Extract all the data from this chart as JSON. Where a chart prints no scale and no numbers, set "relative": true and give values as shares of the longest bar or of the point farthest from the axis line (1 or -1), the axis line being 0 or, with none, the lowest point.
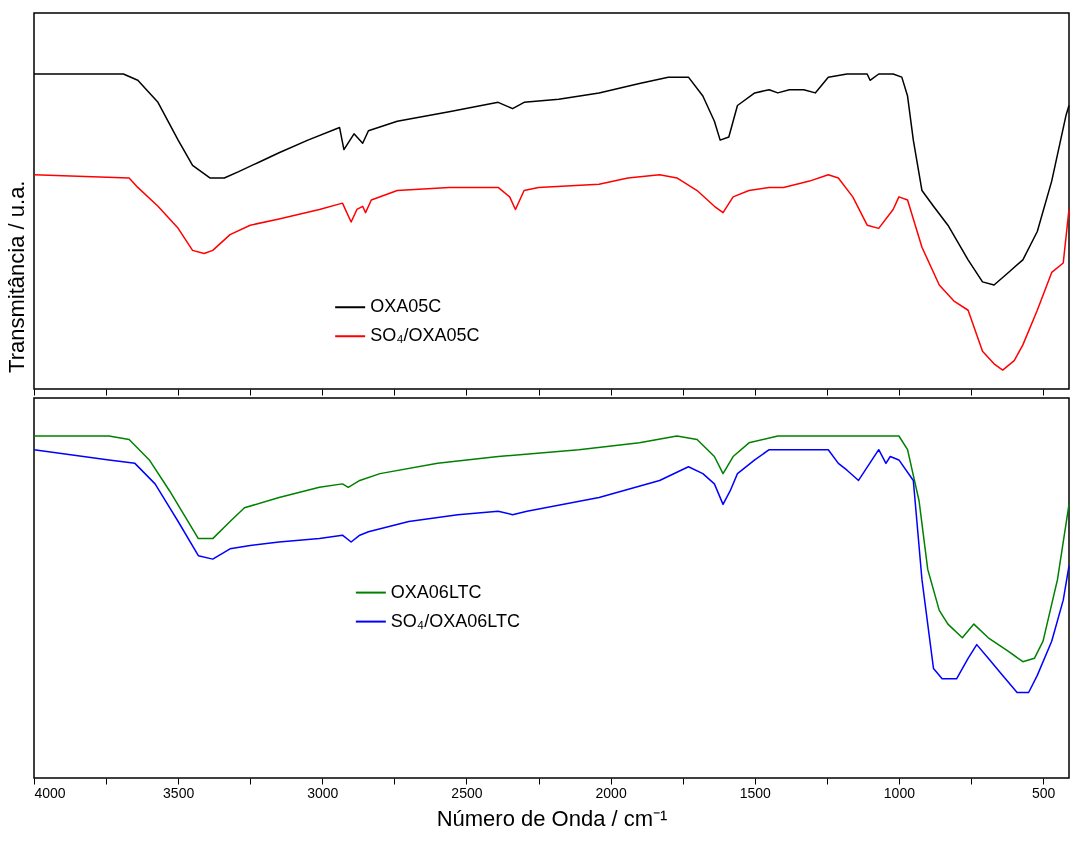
{
  "chart_data": [
    {
      "type": "line",
      "ylabel": "Transmitância / u.a.",
      "relative": true,
      "legend": "bottom",
      "tick_labels": false,
      "xlim": [
        4000,
        410
      ],
      "xticks": [
        4000,
        {
          "value": 3750,
          "label": null
        },
        3500,
        {
          "value": 3250,
          "label": null
        },
        3000,
        {
          "value": 2750,
          "label": null
        },
        2500,
        {
          "value": 2250,
          "label": null
        },
        2000,
        {
          "value": 1750,
          "label": null
        },
        1500,
        {
          "value": 1250,
          "label": null
        },
        1000,
        {
          "value": 750,
          "label": null
        },
        500
      ],
      "series": [
        {
          "name": "OXA05C",
          "color": "#000000",
          "x": [
            4000,
            3690,
            3640,
            3570,
            3500,
            3450,
            3390,
            3340,
            3290,
            3220,
            3150,
            3050,
            2940,
            2925,
            2890,
            2860,
            2840,
            2740,
            2560,
            2390,
            2340,
            2300,
            2180,
            2040,
            1900,
            1800,
            1730,
            1680,
            1640,
            1620,
            1590,
            1560,
            1500,
            1450,
            1420,
            1380,
            1330,
            1290,
            1245,
            1180,
            1110,
            1100,
            1070,
            1020,
            990,
            970,
            950,
            920,
            880,
            830,
            760,
            710,
            670,
            620,
            570,
            520,
            470,
            420,
            410
          ],
          "values": [
            1.0,
            1.0,
            0.98,
            0.91,
            0.79,
            0.71,
            0.67,
            0.67,
            0.69,
            0.72,
            0.75,
            0.79,
            0.83,
            0.76,
            0.81,
            0.78,
            0.82,
            0.85,
            0.88,
            0.91,
            0.89,
            0.91,
            0.92,
            0.94,
            0.97,
            0.99,
            0.99,
            0.93,
            0.85,
            0.79,
            0.8,
            0.9,
            0.94,
            0.95,
            0.94,
            0.95,
            0.95,
            0.94,
            0.99,
            1.0,
            1.0,
            0.98,
            1.0,
            1.0,
            0.99,
            0.93,
            0.79,
            0.63,
            0.58,
            0.52,
            0.41,
            0.34,
            0.33,
            0.37,
            0.41,
            0.5,
            0.66,
            0.87,
            0.9
          ]
        },
        {
          "name": "SO₄/OXA05C",
          "color": "#ff0000",
          "x": [
            4000,
            3670,
            3640,
            3570,
            3500,
            3450,
            3410,
            3380,
            3320,
            3250,
            3150,
            3010,
            2930,
            2900,
            2880,
            2860,
            2850,
            2830,
            2740,
            2560,
            2390,
            2350,
            2330,
            2300,
            2250,
            2040,
            1940,
            1830,
            1770,
            1700,
            1640,
            1610,
            1575,
            1520,
            1450,
            1400,
            1310,
            1245,
            1210,
            1160,
            1110,
            1070,
            1020,
            1000,
            970,
            920,
            860,
            810,
            760,
            710,
            670,
            640,
            600,
            570,
            520,
            470,
            430,
            410
          ],
          "values": [
            0.68,
            0.67,
            0.64,
            0.58,
            0.51,
            0.44,
            0.43,
            0.44,
            0.49,
            0.52,
            0.54,
            0.57,
            0.59,
            0.53,
            0.57,
            0.58,
            0.56,
            0.6,
            0.63,
            0.64,
            0.64,
            0.61,
            0.57,
            0.63,
            0.64,
            0.65,
            0.67,
            0.68,
            0.67,
            0.63,
            0.58,
            0.56,
            0.61,
            0.63,
            0.64,
            0.64,
            0.66,
            0.68,
            0.67,
            0.61,
            0.52,
            0.51,
            0.57,
            0.61,
            0.6,
            0.45,
            0.33,
            0.28,
            0.25,
            0.12,
            0.08,
            0.06,
            0.09,
            0.14,
            0.25,
            0.37,
            0.4,
            0.57
          ]
        }
      ]
    },
    {
      "type": "line",
      "xlabel": "Número de Onda / cm⁻¹",
      "relative": true,
      "legend": "left",
      "xlim": [
        4000,
        410
      ],
      "xticks": [
        4000,
        {
          "value": 3750,
          "label": null
        },
        3500,
        {
          "value": 3250,
          "label": null
        },
        3000,
        {
          "value": 2750,
          "label": null
        },
        2500,
        {
          "value": 2250,
          "label": null
        },
        2000,
        {
          "value": 1750,
          "label": null
        },
        1500,
        {
          "value": 1250,
          "label": null
        },
        1000,
        {
          "value": 750,
          "label": null
        },
        500
      ],
      "series": [
        {
          "name": "OXA06LTC",
          "color": "#008000",
          "x": [
            4000,
            3740,
            3670,
            3600,
            3530,
            3480,
            3430,
            3380,
            3320,
            3270,
            3150,
            3010,
            2930,
            2910,
            2870,
            2800,
            2600,
            2390,
            2110,
            1900,
            1770,
            1700,
            1640,
            1610,
            1575,
            1520,
            1420,
            1210,
            1000,
            970,
            930,
            900,
            860,
            830,
            780,
            740,
            690,
            620,
            570,
            530,
            500,
            450,
            410
          ],
          "values": [
            1.0,
            1.0,
            0.99,
            0.93,
            0.84,
            0.77,
            0.7,
            0.7,
            0.75,
            0.79,
            0.82,
            0.85,
            0.86,
            0.85,
            0.87,
            0.89,
            0.92,
            0.94,
            0.96,
            0.98,
            1.0,
            0.99,
            0.94,
            0.89,
            0.94,
            0.98,
            1.0,
            1.0,
            1.0,
            0.96,
            0.81,
            0.61,
            0.49,
            0.45,
            0.41,
            0.45,
            0.41,
            0.37,
            0.34,
            0.35,
            0.4,
            0.58,
            0.8
          ]
        },
        {
          "name": "SO₄/OXA06LTC",
          "color": "#0000ff",
          "x": [
            4000,
            3740,
            3650,
            3580,
            3500,
            3430,
            3380,
            3320,
            3250,
            3150,
            3010,
            2930,
            2900,
            2870,
            2840,
            2700,
            2530,
            2390,
            2340,
            2290,
            2040,
            1830,
            1730,
            1680,
            1640,
            1610,
            1585,
            1560,
            1500,
            1450,
            1310,
            1245,
            1210,
            1180,
            1140,
            1070,
            1045,
            1030,
            1000,
            950,
            920,
            880,
            850,
            800,
            760,
            730,
            690,
            640,
            590,
            550,
            520,
            470,
            430,
            410
          ],
          "values": [
            0.96,
            0.93,
            0.92,
            0.86,
            0.75,
            0.65,
            0.64,
            0.67,
            0.68,
            0.69,
            0.7,
            0.71,
            0.69,
            0.71,
            0.72,
            0.75,
            0.77,
            0.78,
            0.77,
            0.78,
            0.82,
            0.87,
            0.91,
            0.89,
            0.86,
            0.8,
            0.84,
            0.89,
            0.93,
            0.96,
            0.96,
            0.96,
            0.92,
            0.9,
            0.87,
            0.96,
            0.92,
            0.94,
            0.93,
            0.87,
            0.58,
            0.32,
            0.29,
            0.29,
            0.35,
            0.39,
            0.35,
            0.3,
            0.25,
            0.25,
            0.3,
            0.4,
            0.52,
            0.62
          ]
        }
      ]
    }
  ]
}
